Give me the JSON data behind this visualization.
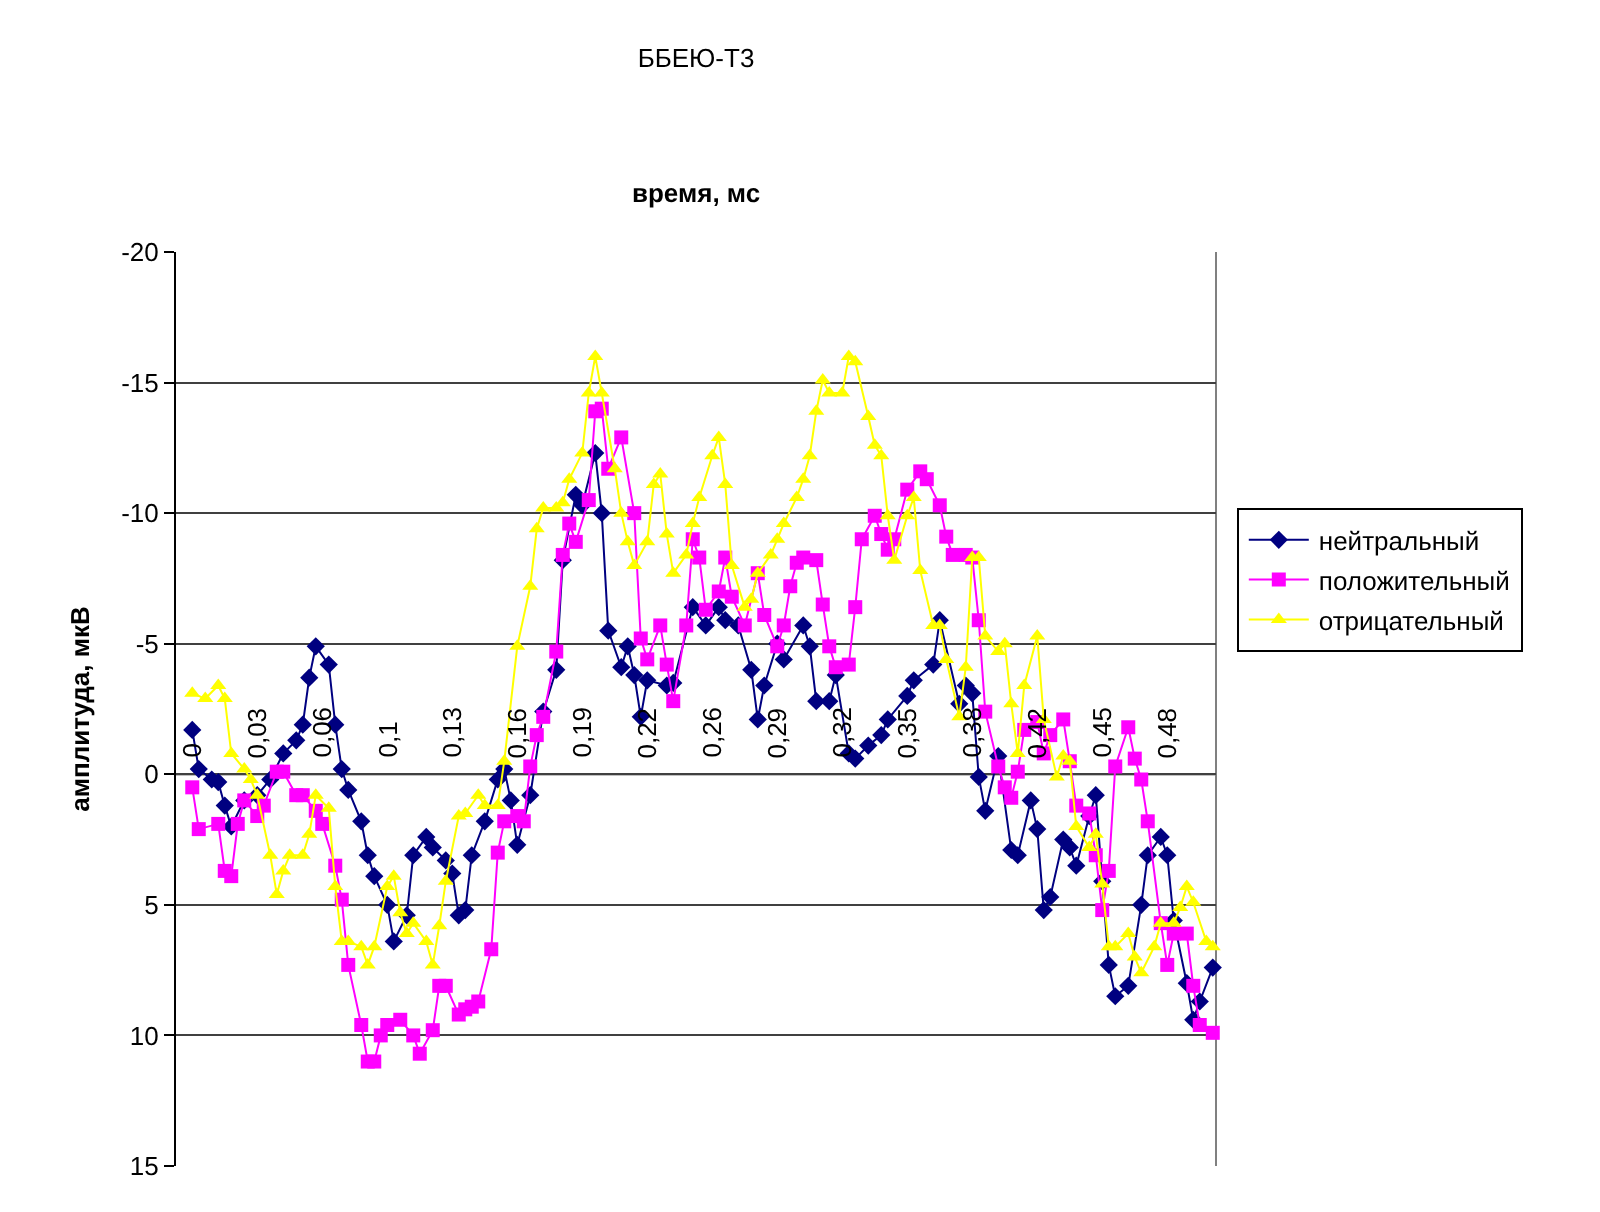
{
  "chart_data": {
    "type": "line",
    "title": "ББЕЮ-Т3",
    "xlabel": "время, мс",
    "ylabel": "амплитуда, мкВ",
    "xlim": [
      -0.008,
      0.504
    ],
    "ylim": [
      15,
      -20
    ],
    "xticks": [
      {
        "value": 0,
        "label": "0"
      },
      {
        "value": 0.032,
        "label": "0,03"
      },
      {
        "value": 0.064,
        "label": "0,06"
      },
      {
        "value": 0.096,
        "label": "0,1"
      },
      {
        "value": 0.128,
        "label": "0,13"
      },
      {
        "value": 0.16,
        "label": "0,16"
      },
      {
        "value": 0.192,
        "label": "0,19"
      },
      {
        "value": 0.224,
        "label": "0,22"
      },
      {
        "value": 0.256,
        "label": "0,26"
      },
      {
        "value": 0.288,
        "label": "0,29"
      },
      {
        "value": 0.32,
        "label": "0,32"
      },
      {
        "value": 0.352,
        "label": "0,35"
      },
      {
        "value": 0.384,
        "label": "0,38"
      },
      {
        "value": 0.416,
        "label": "0,42"
      },
      {
        "value": 0.448,
        "label": "0,45"
      },
      {
        "value": 0.48,
        "label": "0,48"
      }
    ],
    "yticks": [
      -20,
      -15,
      -10,
      -5,
      0,
      5,
      10,
      15
    ],
    "grid": "y",
    "legend": "right",
    "line_style": "solid",
    "series": [
      {
        "name": "нейтральный",
        "color": "#000080",
        "marker": "diamond",
        "x": [
          0,
          0.0032,
          0.0096,
          0.0128,
          0.016,
          0.0192,
          0.0256,
          0.032,
          0.0384,
          0.0448,
          0.0512,
          0.0544,
          0.0576,
          0.0608,
          0.0672,
          0.0704,
          0.0736,
          0.0768,
          0.0832,
          0.0864,
          0.0896,
          0.096,
          0.0992,
          0.1056,
          0.1088,
          0.1152,
          0.1184,
          0.1248,
          0.128,
          0.1312,
          0.1344,
          0.1376,
          0.144,
          0.1504,
          0.1536,
          0.1568,
          0.16,
          0.1664,
          0.1728,
          0.1792,
          0.1824,
          0.1888,
          0.192,
          0.1984,
          0.2016,
          0.2048,
          0.2112,
          0.2144,
          0.2176,
          0.2208,
          0.224,
          0.2336,
          0.2368,
          0.2464,
          0.2528,
          0.2592,
          0.2624,
          0.2688,
          0.2752,
          0.2784,
          0.2816,
          0.288,
          0.2912,
          0.3008,
          0.304,
          0.3072,
          0.3136,
          0.3168,
          0.3232,
          0.3264,
          0.3328,
          0.3392,
          0.3424,
          0.352,
          0.3552,
          0.3648,
          0.368,
          0.3776,
          0.3808,
          0.384,
          0.3872,
          0.3904,
          0.3968,
          0.4032,
          0.4064,
          0.4128,
          0.416,
          0.4192,
          0.4224,
          0.4288,
          0.432,
          0.4352,
          0.4416,
          0.4448,
          0.448,
          0.4512,
          0.4544,
          0.4608,
          0.4672,
          0.4704,
          0.4768,
          0.48,
          0.4832,
          0.4896,
          0.4928,
          0.496,
          0.5024
        ],
        "values": [
          -1.7,
          -0.2,
          0.2,
          0.3,
          1.2,
          2.0,
          1.0,
          0.8,
          0.2,
          -0.8,
          -1.3,
          -1.9,
          -3.7,
          -4.9,
          -4.2,
          -1.9,
          -0.2,
          0.6,
          1.8,
          3.1,
          3.9,
          5.0,
          6.4,
          5.4,
          3.1,
          2.4,
          2.8,
          3.3,
          3.8,
          5.4,
          5.2,
          3.1,
          1.8,
          0.2,
          -0.2,
          1.0,
          2.7,
          0.8,
          -2.4,
          -4.0,
          -8.2,
          -10.7,
          -10.3,
          -12.3,
          -10.0,
          -5.5,
          -4.1,
          -4.9,
          -3.8,
          -2.2,
          -3.6,
          -3.4,
          -3.5,
          -6.4,
          -5.7,
          -6.4,
          -5.9,
          -5.7,
          -4.0,
          -2.1,
          -3.4,
          -5.0,
          -4.4,
          -5.7,
          -4.9,
          -2.8,
          -2.8,
          -3.8,
          -0.8,
          -0.6,
          -1.1,
          -1.5,
          -2.1,
          -3.0,
          -3.6,
          -4.2,
          -5.9,
          -2.7,
          -3.4,
          -3.1,
          0.1,
          1.4,
          -0.7,
          2.9,
          3.1,
          1.0,
          2.1,
          5.2,
          4.7,
          2.5,
          2.8,
          3.5,
          1.6,
          0.8,
          4.1,
          7.3,
          8.5,
          8.1,
          5.0,
          3.1,
          2.4,
          3.1,
          5.6,
          8.0,
          9.4,
          8.7,
          7.4
        ]
      },
      {
        "name": "положительный",
        "color": "#ff00ff",
        "marker": "square",
        "x": [
          0,
          0.0032,
          0.0128,
          0.016,
          0.0192,
          0.0224,
          0.0256,
          0.032,
          0.0352,
          0.0416,
          0.0448,
          0.0512,
          0.0544,
          0.0608,
          0.064,
          0.0704,
          0.0736,
          0.0768,
          0.0832,
          0.0864,
          0.0896,
          0.0928,
          0.096,
          0.1024,
          0.1088,
          0.112,
          0.1184,
          0.1216,
          0.1248,
          0.1312,
          0.1344,
          0.1376,
          0.1408,
          0.1472,
          0.1504,
          0.1536,
          0.16,
          0.1632,
          0.1664,
          0.1696,
          0.1728,
          0.1792,
          0.1824,
          0.1856,
          0.1888,
          0.1952,
          0.1984,
          0.2016,
          0.2048,
          0.2112,
          0.2176,
          0.2208,
          0.224,
          0.2304,
          0.2336,
          0.2368,
          0.2432,
          0.2464,
          0.2496,
          0.2528,
          0.2592,
          0.2624,
          0.2656,
          0.272,
          0.2784,
          0.2816,
          0.288,
          0.2912,
          0.2944,
          0.2976,
          0.3008,
          0.3072,
          0.3104,
          0.3136,
          0.3168,
          0.3232,
          0.3264,
          0.3296,
          0.336,
          0.3392,
          0.3424,
          0.3456,
          0.352,
          0.3584,
          0.3616,
          0.368,
          0.3712,
          0.3744,
          0.3808,
          0.384,
          0.3872,
          0.3904,
          0.3968,
          0.4,
          0.4032,
          0.4064,
          0.4096,
          0.416,
          0.4192,
          0.4224,
          0.4288,
          0.432,
          0.4352,
          0.4416,
          0.4448,
          0.448,
          0.4512,
          0.4544,
          0.4608,
          0.464,
          0.4672,
          0.4704,
          0.4768,
          0.48,
          0.4832,
          0.4896,
          0.4928,
          0.496,
          0.5024
        ],
        "values": [
          0.5,
          2.1,
          1.9,
          3.7,
          3.9,
          1.9,
          1.0,
          1.6,
          1.2,
          -0.1,
          -0.1,
          0.8,
          0.8,
          1.4,
          1.9,
          3.5,
          4.8,
          7.3,
          9.6,
          11.0,
          11.0,
          10.0,
          9.6,
          9.4,
          10.0,
          10.7,
          9.8,
          8.1,
          8.1,
          9.2,
          9.0,
          8.9,
          8.7,
          6.7,
          3.0,
          1.8,
          1.6,
          1.8,
          -0.3,
          -1.5,
          -2.2,
          -4.7,
          -8.4,
          -9.6,
          -8.9,
          -10.5,
          -13.9,
          -14.0,
          -11.7,
          -12.9,
          -10.0,
          -5.2,
          -4.4,
          -5.7,
          -4.2,
          -2.8,
          -5.7,
          -9.0,
          -8.3,
          -6.3,
          -7.0,
          -8.3,
          -6.8,
          -5.7,
          -7.7,
          -6.1,
          -4.9,
          -5.7,
          -7.2,
          -8.1,
          -8.3,
          -8.2,
          -6.5,
          -4.9,
          -4.1,
          -4.2,
          -6.4,
          -9.0,
          -9.9,
          -9.2,
          -8.6,
          -9.0,
          -10.9,
          -11.6,
          -11.3,
          -10.3,
          -9.1,
          -8.4,
          -8.4,
          -8.3,
          -5.9,
          -2.4,
          -0.3,
          0.5,
          0.9,
          -0.1,
          -1.7,
          -2.0,
          -0.8,
          -1.5,
          -2.1,
          -0.5,
          1.2,
          1.5,
          3.1,
          5.2,
          3.7,
          -0.3,
          -1.8,
          -0.6,
          0.2,
          1.8,
          5.7,
          7.3,
          6.1,
          6.1,
          8.1,
          9.6,
          9.9
        ]
      },
      {
        "name": "отрицательный",
        "color": "#ffff00",
        "marker": "triangle",
        "x": [
          0,
          0.0064,
          0.0128,
          0.016,
          0.0192,
          0.0256,
          0.0288,
          0.032,
          0.0384,
          0.0416,
          0.0448,
          0.048,
          0.0544,
          0.0576,
          0.0608,
          0.0672,
          0.0704,
          0.0736,
          0.0768,
          0.0832,
          0.0864,
          0.0896,
          0.096,
          0.0992,
          0.1024,
          0.1056,
          0.1088,
          0.1152,
          0.1184,
          0.1216,
          0.1248,
          0.1312,
          0.1344,
          0.1408,
          0.144,
          0.1504,
          0.1536,
          0.16,
          0.1664,
          0.1696,
          0.1728,
          0.1792,
          0.1824,
          0.1856,
          0.192,
          0.1952,
          0.1984,
          0.2016,
          0.208,
          0.2112,
          0.2144,
          0.2176,
          0.224,
          0.2272,
          0.2304,
          0.2336,
          0.2368,
          0.2432,
          0.2464,
          0.2496,
          0.256,
          0.2592,
          0.2624,
          0.2656,
          0.272,
          0.2752,
          0.2784,
          0.2848,
          0.288,
          0.2912,
          0.2976,
          0.3008,
          0.304,
          0.3072,
          0.3104,
          0.3136,
          0.32,
          0.3232,
          0.3264,
          0.3328,
          0.336,
          0.3392,
          0.3424,
          0.3456,
          0.352,
          0.3552,
          0.3584,
          0.3648,
          0.368,
          0.3712,
          0.3776,
          0.3808,
          0.384,
          0.3872,
          0.3904,
          0.3968,
          0.4,
          0.4032,
          0.4064,
          0.4096,
          0.416,
          0.4192,
          0.4256,
          0.4288,
          0.432,
          0.4352,
          0.4416,
          0.4448,
          0.448,
          0.4512,
          0.4544,
          0.4608,
          0.464,
          0.4672,
          0.4736,
          0.4768,
          0.4832,
          0.4864,
          0.4896,
          0.4928,
          0.4992,
          0.5024
        ],
        "values": [
          -3.1,
          -2.9,
          -3.4,
          -2.9,
          -0.8,
          -0.2,
          0.2,
          0.8,
          3.1,
          4.6,
          3.7,
          3.1,
          3.1,
          2.3,
          0.8,
          1.3,
          4.3,
          6.4,
          6.4,
          6.6,
          7.3,
          6.6,
          4.3,
          3.9,
          5.3,
          6.1,
          5.7,
          6.4,
          7.3,
          5.8,
          4.1,
          1.6,
          1.5,
          0.8,
          1.2,
          1.2,
          -0.5,
          -4.9,
          -7.2,
          -9.4,
          -10.2,
          -10.2,
          -10.4,
          -11.3,
          -12.3,
          -14.6,
          -16.0,
          -14.6,
          -11.7,
          -10.0,
          -8.9,
          -8.0,
          -8.9,
          -11.1,
          -11.5,
          -9.2,
          -7.7,
          -8.4,
          -9.6,
          -10.6,
          -12.2,
          -12.9,
          -11.1,
          -8.0,
          -6.4,
          -6.7,
          -7.7,
          -8.4,
          -9.0,
          -9.6,
          -10.6,
          -11.3,
          -12.2,
          -13.9,
          -15.1,
          -14.6,
          -14.6,
          -16.0,
          -15.8,
          -13.7,
          -12.6,
          -12.2,
          -9.9,
          -8.2,
          -9.9,
          -10.6,
          -7.8,
          -5.7,
          -5.7,
          -4.4,
          -2.2,
          -4.1,
          -8.3,
          -8.3,
          -5.3,
          -4.7,
          -5.0,
          -2.7,
          -0.8,
          -3.4,
          -5.3,
          -2.1,
          0.1,
          -0.7,
          -0.5,
          2.0,
          2.8,
          2.3,
          4.2,
          6.6,
          6.6,
          6.1,
          7.0,
          7.6,
          6.6,
          5.7,
          5.7,
          5.1,
          4.3,
          4.9,
          6.4,
          6.6
        ]
      }
    ]
  }
}
